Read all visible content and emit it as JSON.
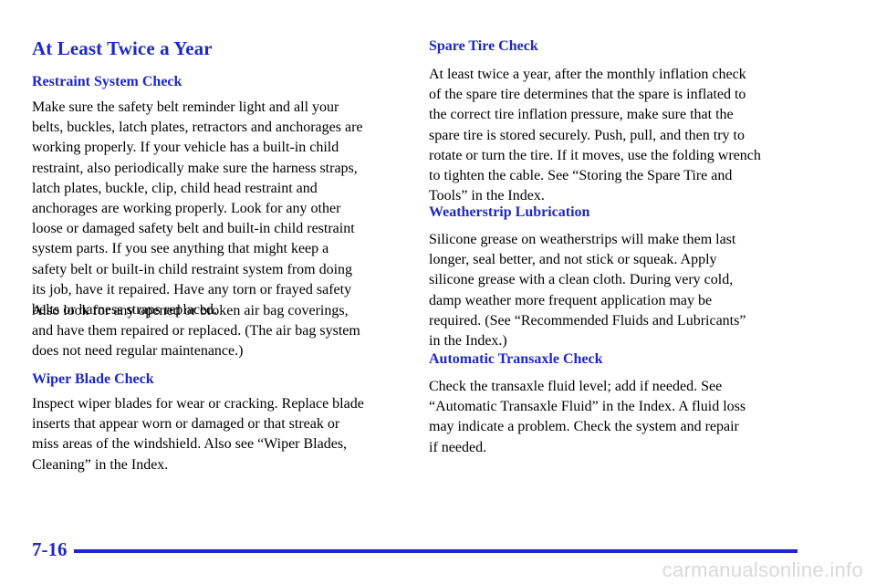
{
  "page": {
    "title": "At Least Twice a Year",
    "page_number": "7-16",
    "watermark": "carmanualsonline.info"
  },
  "left": {
    "restraint": {
      "heading": "Restraint System Check",
      "p1": [
        "Make sure the safety belt reminder light and all your",
        "belts, buckles, latch plates, retractors and anchorages are",
        "working properly. If your vehicle has a built-in child",
        "restraint, also periodically make sure the harness straps,",
        "latch plates, buckle, clip, child head restraint and",
        "anchorages are working properly. Look for any other",
        "loose or damaged safety belt and built-in child restraint",
        "system parts. If you see anything that might keep a",
        "safety belt or built-in child restraint system from doing",
        "its job, have it repaired. Have any torn or frayed safety",
        "belts or harness straps replaced."
      ],
      "p2": [
        "Also look for any opened or broken air bag coverings,",
        "and have them repaired or replaced. (The air bag system",
        "does not need regular maintenance.)"
      ]
    },
    "wiper": {
      "heading": "Wiper Blade Check",
      "p1": [
        "Inspect wiper blades for wear or cracking. Replace blade",
        "inserts that appear worn or damaged or that streak or",
        "miss areas of the windshield. Also see “Wiper Blades,",
        "Cleaning” in the Index."
      ]
    }
  },
  "right": {
    "spare": {
      "heading": "Spare Tire Check",
      "p1": [
        "At least twice a year, after the monthly inflation check",
        "of the spare tire determines that the spare is inflated to",
        "the correct tire inflation pressure, make sure that the",
        "spare tire is stored securely. Push, pull, and then try to",
        "rotate or turn the tire. If it moves, use the folding wrench",
        "to tighten the cable. See “Storing the Spare Tire and",
        "Tools” in the Index."
      ]
    },
    "weatherstrip": {
      "heading": "Weatherstrip Lubrication",
      "p1": [
        "Silicone grease on weatherstrips will make them last",
        "longer, seal better, and not stick or squeak. Apply",
        "silicone grease with a clean cloth. During very cold,",
        "damp weather more frequent application may be",
        "required. (See “Recommended Fluids and Lubricants”",
        "in the Index.)"
      ]
    },
    "transaxle": {
      "heading": "Automatic Transaxle Check",
      "p1": [
        "Check the transaxle fluid level; add if needed. See",
        "“Automatic Transaxle Fluid” in the Index. A fluid loss",
        "may indicate a problem. Check the system and repair",
        "if needed."
      ]
    }
  }
}
